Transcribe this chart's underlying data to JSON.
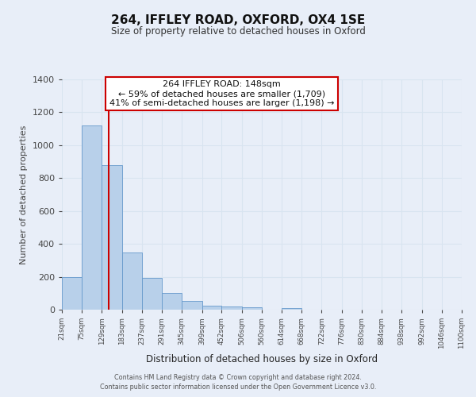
{
  "title": "264, IFFLEY ROAD, OXFORD, OX4 1SE",
  "subtitle": "Size of property relative to detached houses in Oxford",
  "xlabel": "Distribution of detached houses by size in Oxford",
  "ylabel": "Number of detached properties",
  "bar_edges": [
    21,
    75,
    129,
    183,
    237,
    291,
    345,
    399,
    452,
    506,
    560,
    614,
    668,
    722,
    776,
    830,
    884,
    938,
    992,
    1046,
    1100
  ],
  "bar_heights": [
    200,
    1120,
    880,
    350,
    195,
    100,
    55,
    22,
    18,
    13,
    0,
    12,
    0,
    0,
    0,
    0,
    0,
    0,
    0,
    0
  ],
  "bar_color": "#b8d0ea",
  "bar_edge_color": "#6699cc",
  "vline_x": 148,
  "vline_color": "#cc0000",
  "annotation_title": "264 IFFLEY ROAD: 148sqm",
  "annotation_line1": "← 59% of detached houses are smaller (1,709)",
  "annotation_line2": "41% of semi-detached houses are larger (1,198) →",
  "annotation_box_color": "#ffffff",
  "annotation_box_edge": "#cc0000",
  "ylim": [
    0,
    1400
  ],
  "xlim": [
    21,
    1100
  ],
  "bg_color": "#e8eef8",
  "grid_color": "#d8e4f0",
  "footer_line1": "Contains HM Land Registry data © Crown copyright and database right 2024.",
  "footer_line2": "Contains public sector information licensed under the Open Government Licence v3.0."
}
